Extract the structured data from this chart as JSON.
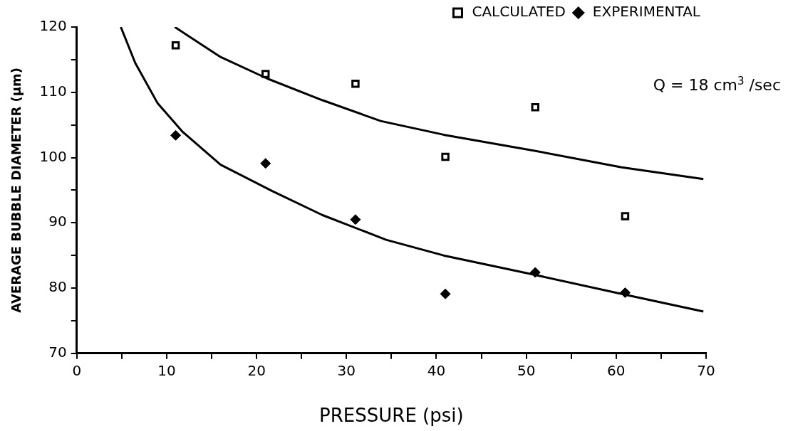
{
  "chart_data": {
    "type": "scatter",
    "xlabel": "PRESSURE (psi)",
    "ylabel": "AVERAGE BUBBLE DIAMETER (µm)",
    "xlim": [
      0,
      70
    ],
    "ylim": [
      70,
      120
    ],
    "xticks": [
      0,
      {
        "value": 5,
        "label": null
      },
      10,
      {
        "value": 15,
        "label": null
      },
      20,
      {
        "value": 25,
        "label": null
      },
      30,
      {
        "value": 35,
        "label": null
      },
      40,
      {
        "value": 45,
        "label": null
      },
      50,
      {
        "value": 55,
        "label": null
      },
      60,
      {
        "value": 65,
        "label": null
      },
      70
    ],
    "yticks": [
      70,
      {
        "value": 75,
        "label": null
      },
      80,
      {
        "value": 85,
        "label": null
      },
      90,
      {
        "value": 95,
        "label": null
      },
      100,
      {
        "value": 105,
        "label": null
      },
      110,
      {
        "value": 115,
        "label": null
      },
      120
    ],
    "grid": false,
    "legend": "top right",
    "annotations": [
      "Q = 18 cm$^{3}$ /sec"
    ],
    "series": [
      {
        "name": "CALCULATED",
        "marker": "square",
        "color": "#000000",
        "x": [
          11,
          21,
          31,
          41,
          51,
          61
        ],
        "values": [
          117.2,
          112.8,
          111.3,
          100.1,
          107.7,
          91.0
        ]
      },
      {
        "name": "EXPERIMENTAL",
        "marker": "diamond",
        "color": "#000000",
        "x": [
          11,
          21,
          31,
          41,
          51,
          61
        ],
        "values": [
          103.4,
          99.1,
          90.5,
          79.1,
          82.4,
          79.3
        ]
      },
      {
        "type": "line",
        "marker": "none",
        "color": "#000000",
        "x": [
          10.9,
          16,
          21.2,
          27.3,
          33.8,
          40.8,
          50.7,
          60.6,
          69.7
        ],
        "values": [
          120,
          115.4,
          112.1,
          108.8,
          105.6,
          103.5,
          101.1,
          98.5,
          96.7
        ]
      },
      {
        "type": "line",
        "marker": "none",
        "color": "#000000",
        "x": [
          4.9,
          6.5,
          9.0,
          11.8,
          16,
          21.7,
          27.3,
          34.4,
          40.8,
          50.7,
          60.6,
          69.7
        ],
        "values": [
          120,
          114.5,
          108.3,
          103.9,
          98.9,
          94.9,
          91.2,
          87.4,
          85,
          82.1,
          79.1,
          76.4
        ]
      }
    ]
  }
}
